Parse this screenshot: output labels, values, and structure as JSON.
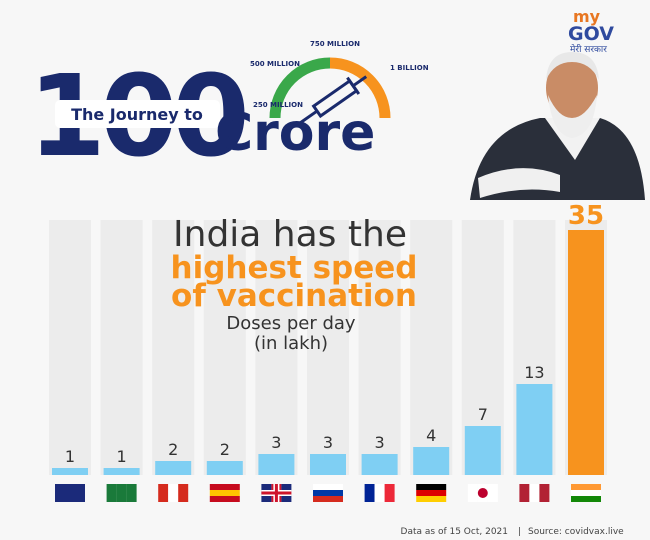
{
  "logo": {
    "my": "my",
    "gov": "GOV",
    "tagline": "मेरी सरकार"
  },
  "header": {
    "prefix": "The Journey to",
    "number": "100",
    "word": "Crore",
    "gauge_labels": [
      "250 MILLION",
      "500 MILLION",
      "750 MILLION",
      "1 BILLION"
    ]
  },
  "chart_data": {
    "type": "bar",
    "title_lines": [
      "India has the",
      "highest speed",
      "of vaccination"
    ],
    "subtitle_lines": [
      "Doses per day",
      "(in lakh)"
    ],
    "values": [
      1,
      1,
      2,
      2,
      3,
      3,
      3,
      4,
      7,
      13,
      35
    ],
    "colors": [
      "#7fcff3",
      "#7fcff3",
      "#7fcff3",
      "#7fcff3",
      "#7fcff3",
      "#7fcff3",
      "#7fcff3",
      "#7fcff3",
      "#7fcff3",
      "#7fcff3",
      "#f7931e"
    ],
    "footnote": [
      "Data as of 15 Oct, 2021",
      "Source: covidvax.live"
    ]
  }
}
